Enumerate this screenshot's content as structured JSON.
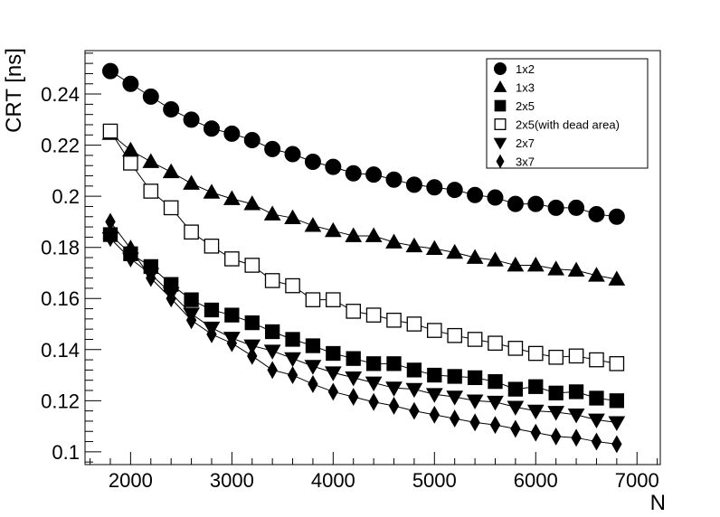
{
  "chart_data": {
    "type": "scatter",
    "title": "",
    "xlabel": "N",
    "ylabel": "CRT [ns]",
    "xlim": [
      1550,
      7230
    ],
    "ylim": [
      0.095,
      0.257
    ],
    "x_ticks": [
      2000,
      3000,
      4000,
      5000,
      6000,
      7000
    ],
    "x_tick_labels": [
      "2000",
      "3000",
      "4000",
      "5000",
      "6000",
      "7000"
    ],
    "y_ticks": [
      0.1,
      0.12,
      0.14,
      0.16,
      0.18,
      0.2,
      0.22,
      0.24
    ],
    "y_tick_labels": [
      "0.1",
      "0.12",
      "0.14",
      "0.16",
      "0.18",
      "0.2",
      "0.22",
      "0.24"
    ],
    "grid": false,
    "legend_position": "top-right",
    "x": [
      1800,
      2000,
      2200,
      2400,
      2600,
      2800,
      3000,
      3200,
      3400,
      3600,
      3800,
      4000,
      4200,
      4400,
      4600,
      4800,
      5000,
      5200,
      5400,
      5600,
      5800,
      6000,
      6200,
      6400,
      6600,
      6800
    ],
    "series": [
      {
        "name": "1x2",
        "marker": "circle",
        "filled": true,
        "values": [
          0.249,
          0.244,
          0.239,
          0.234,
          0.23,
          0.2265,
          0.2245,
          0.222,
          0.2185,
          0.2165,
          0.2135,
          0.2115,
          0.209,
          0.2085,
          0.2065,
          0.2045,
          0.2035,
          0.2025,
          0.2005,
          0.1995,
          0.197,
          0.197,
          0.1955,
          0.1955,
          0.193,
          0.192
        ]
      },
      {
        "name": "1x3",
        "marker": "triangle-up",
        "filled": true,
        "values": [
          0.2245,
          0.218,
          0.2135,
          0.2095,
          0.205,
          0.2015,
          0.199,
          0.197,
          0.193,
          0.1915,
          0.1885,
          0.1865,
          0.1845,
          0.1845,
          0.182,
          0.1805,
          0.1795,
          0.178,
          0.176,
          0.175,
          0.173,
          0.173,
          0.1715,
          0.171,
          0.169,
          0.1675
        ]
      },
      {
        "name": "2x5",
        "marker": "square",
        "filled": true,
        "values": [
          0.185,
          0.1775,
          0.1725,
          0.1655,
          0.1595,
          0.1555,
          0.1535,
          0.1505,
          0.147,
          0.144,
          0.1415,
          0.1385,
          0.1365,
          0.1345,
          0.1345,
          0.132,
          0.13,
          0.1295,
          0.129,
          0.1275,
          0.1245,
          0.1255,
          0.123,
          0.1235,
          0.121,
          0.12
        ]
      },
      {
        "name": "2x5(with dead area)",
        "marker": "square",
        "filled": false,
        "values": [
          0.2255,
          0.213,
          0.202,
          0.1955,
          0.186,
          0.1805,
          0.1755,
          0.173,
          0.167,
          0.165,
          0.1595,
          0.1595,
          0.155,
          0.1535,
          0.1515,
          0.15,
          0.1475,
          0.1455,
          0.144,
          0.1425,
          0.1405,
          0.1385,
          0.137,
          0.1375,
          0.136,
          0.1345
        ]
      },
      {
        "name": "2x7",
        "marker": "triangle-down",
        "filled": true,
        "values": [
          0.1835,
          0.1755,
          0.1695,
          0.162,
          0.154,
          0.1485,
          0.1445,
          0.1415,
          0.1395,
          0.1365,
          0.1335,
          0.131,
          0.129,
          0.127,
          0.125,
          0.1245,
          0.1225,
          0.1215,
          0.12,
          0.1195,
          0.1175,
          0.116,
          0.1155,
          0.1145,
          0.1125,
          0.1115
        ]
      },
      {
        "name": "3x7",
        "marker": "diamond",
        "filled": true,
        "values": [
          0.19,
          0.1795,
          0.168,
          0.16,
          0.1515,
          0.146,
          0.1425,
          0.1375,
          0.132,
          0.13,
          0.1265,
          0.1235,
          0.1215,
          0.1195,
          0.118,
          0.116,
          0.1145,
          0.113,
          0.1115,
          0.1105,
          0.109,
          0.1075,
          0.106,
          0.1055,
          0.104,
          0.103
        ]
      }
    ]
  }
}
